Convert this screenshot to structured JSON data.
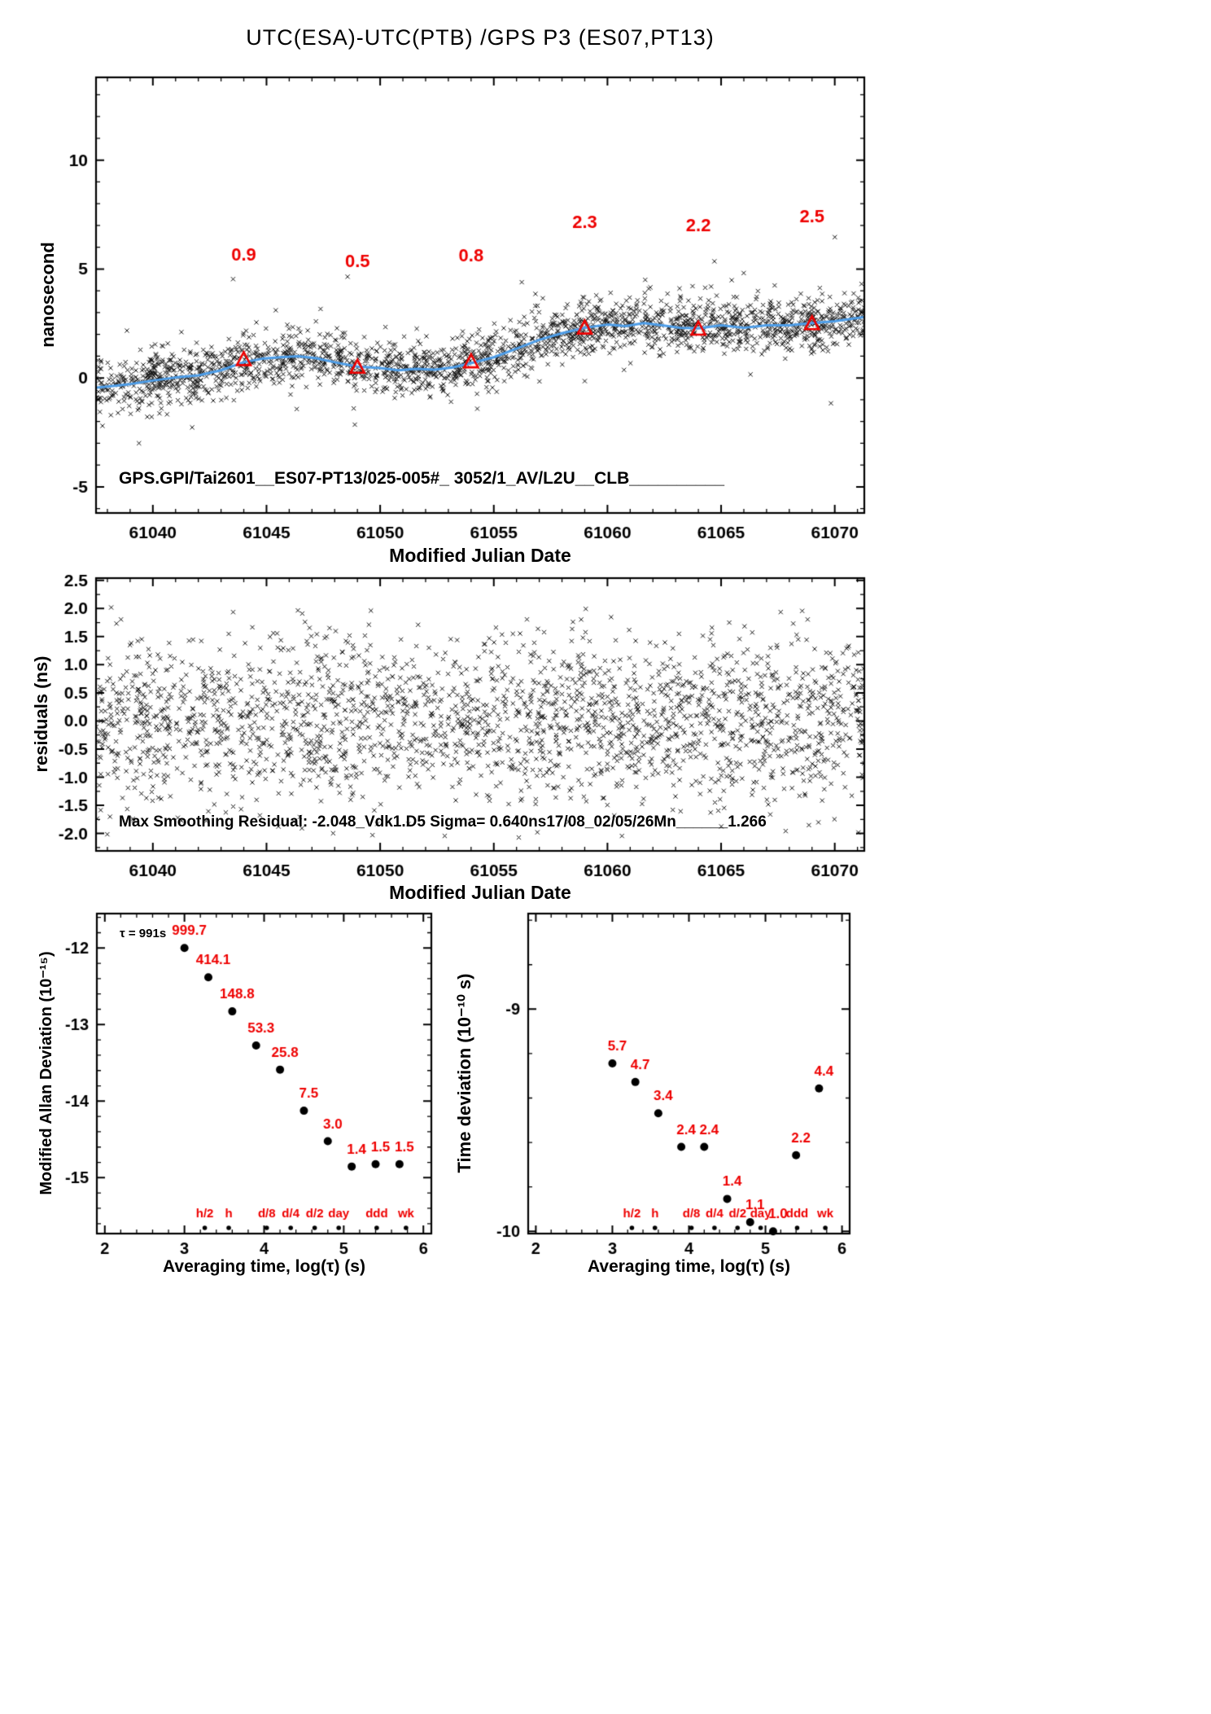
{
  "title": "UTC(ESA)-UTC(PTB)  /GPS  P3  (ES07,PT13)",
  "colors": {
    "red": "#ee0000",
    "blue": "#4d9de8",
    "black": "#000000",
    "marker": "#161616"
  },
  "chart_data": [
    {
      "type": "scatter",
      "name": "time-difference",
      "xlabel": "Modified Julian Date",
      "ylabel": "nanosecond",
      "xlim": [
        61037.5,
        61071.3
      ],
      "ylim": [
        -6.2,
        13.8
      ],
      "xticks": [
        {
          "v": 61040,
          "label": "61040"
        },
        {
          "v": 61045,
          "label": "61045"
        },
        {
          "v": 61050,
          "label": "61050"
        },
        {
          "v": 61055,
          "label": "61055"
        },
        {
          "v": 61060,
          "label": "61060"
        },
        {
          "v": 61065,
          "label": "61065"
        },
        {
          "v": 61070,
          "label": "61070"
        }
      ],
      "yticks": [
        {
          "v": -5,
          "label": "-5"
        },
        {
          "v": 0,
          "label": "0"
        },
        {
          "v": 5,
          "label": "5"
        },
        {
          "v": 10,
          "label": "10"
        }
      ],
      "minor_x": 1,
      "minor_y": 1,
      "annotation": "GPS.GPI/Tai2601__ES07-PT13/025-005#_  3052/1_AV/L2U__CLB__________",
      "smoothed_line": [
        [
          61037.5,
          -0.45
        ],
        [
          61038,
          -0.4
        ],
        [
          61039,
          -0.28
        ],
        [
          61040,
          -0.12
        ],
        [
          61041,
          0.02
        ],
        [
          61042,
          0.12
        ],
        [
          61043,
          0.35
        ],
        [
          61044,
          0.72
        ],
        [
          61044.8,
          0.88
        ],
        [
          61045.6,
          0.95
        ],
        [
          61046.4,
          1.0
        ],
        [
          61047.2,
          0.9
        ],
        [
          61048,
          0.72
        ],
        [
          61049,
          0.52
        ],
        [
          61050,
          0.45
        ],
        [
          61050.8,
          0.35
        ],
        [
          61051.6,
          0.42
        ],
        [
          61052.4,
          0.38
        ],
        [
          61053.2,
          0.48
        ],
        [
          61054,
          0.68
        ],
        [
          61055,
          0.95
        ],
        [
          61056,
          1.35
        ],
        [
          61057,
          1.75
        ],
        [
          61058,
          2.05
        ],
        [
          61059,
          2.3
        ],
        [
          61060,
          2.45
        ],
        [
          61060.8,
          2.38
        ],
        [
          61061.6,
          2.52
        ],
        [
          61062.4,
          2.42
        ],
        [
          61063.2,
          2.3
        ],
        [
          61064,
          2.28
        ],
        [
          61065,
          2.42
        ],
        [
          61066,
          2.3
        ],
        [
          61067,
          2.42
        ],
        [
          61068,
          2.42
        ],
        [
          61069,
          2.52
        ],
        [
          61070,
          2.6
        ],
        [
          61071.3,
          2.8
        ]
      ],
      "five_day_averages": [
        {
          "x": 61044,
          "y": 0.85,
          "label": "0.9",
          "label_y": 5.4
        },
        {
          "x": 61049,
          "y": 0.5,
          "label": "0.5",
          "label_y": 5.1
        },
        {
          "x": 61054,
          "y": 0.75,
          "label": "0.8",
          "label_y": 5.35
        },
        {
          "x": 61059,
          "y": 2.3,
          "label": "2.3",
          "label_y": 6.9
        },
        {
          "x": 61064,
          "y": 2.25,
          "label": "2.2",
          "label_y": 6.75
        },
        {
          "x": 61069,
          "y": 2.5,
          "label": "2.5",
          "label_y": 7.15
        }
      ],
      "scatter": {
        "n": 2300,
        "sigma": 0.6,
        "halo_every": 13,
        "halo_mult": 2.3,
        "seed": 1234,
        "follow_line": true
      }
    },
    {
      "type": "scatter",
      "name": "residuals",
      "xlabel": "Modified Julian Date",
      "ylabel": "residuals (ns)",
      "xlim": [
        61037.5,
        61071.3
      ],
      "ylim": [
        -2.31,
        2.54
      ],
      "xticks": [
        {
          "v": 61040,
          "label": "61040"
        },
        {
          "v": 61045,
          "label": "61045"
        },
        {
          "v": 61050,
          "label": "61050"
        },
        {
          "v": 61055,
          "label": "61055"
        },
        {
          "v": 61060,
          "label": "61060"
        },
        {
          "v": 61065,
          "label": "61065"
        },
        {
          "v": 61070,
          "label": "61070"
        }
      ],
      "yticks": [
        {
          "v": 2.5,
          "label": "2.5"
        },
        {
          "v": 2.0,
          "label": "2.0"
        },
        {
          "v": 1.5,
          "label": "1.5"
        },
        {
          "v": 1.0,
          "label": "1.0"
        },
        {
          "v": 0.5,
          "label": "0.5"
        },
        {
          "v": 0.0,
          "label": "0.0"
        },
        {
          "v": -0.5,
          "label": "-0.5"
        },
        {
          "v": -1.0,
          "label": "-1.0"
        },
        {
          "v": -1.5,
          "label": "-1.5"
        },
        {
          "v": -2.0,
          "label": "-2.0"
        }
      ],
      "minor_x": 1,
      "minor_y": 0.25,
      "annotation": "Max Smoothing Residual: -2.048_Vdk1.D5  Sigma= 0.640ns17/08_02/05/26Mn______1.266",
      "scatter": {
        "n": 2300,
        "sigma": 0.72,
        "clip": [
          -2.08,
          2.12
        ],
        "halo_every": 29,
        "halo_mult": 1.6,
        "seed": 8765,
        "follow_line": false
      }
    },
    {
      "type": "scatter",
      "name": "modified-allan-deviation",
      "xlabel": "Averaging time, log(τ) (s)",
      "ylabel": "Modified Allan Deviation (10⁻¹⁵)",
      "tau_note": "τ = 991s",
      "xlim": [
        1.9,
        6.1
      ],
      "ylim": [
        -15.73,
        -11.55
      ],
      "xticks": [
        {
          "v": 2,
          "label": "2"
        },
        {
          "v": 3,
          "label": "3"
        },
        {
          "v": 4,
          "label": "4"
        },
        {
          "v": 5,
          "label": "5"
        },
        {
          "v": 6,
          "label": "6"
        }
      ],
      "yticks": [
        {
          "v": -12,
          "label": "-12"
        },
        {
          "v": -13,
          "label": "-13"
        },
        {
          "v": -14,
          "label": "-14"
        },
        {
          "v": -15,
          "label": "-15"
        }
      ],
      "minor_x": 0.2,
      "minor_y": 0.2,
      "unit_exponent": -15,
      "points": [
        {
          "logtau": 3.0,
          "value": 999.7,
          "label": "999.7"
        },
        {
          "logtau": 3.3,
          "value": 414.1,
          "label": "414.1"
        },
        {
          "logtau": 3.6,
          "value": 148.8,
          "label": "148.8"
        },
        {
          "logtau": 3.9,
          "value": 53.3,
          "label": "53.3"
        },
        {
          "logtau": 4.2,
          "value": 25.8,
          "label": "25.8"
        },
        {
          "logtau": 4.5,
          "value": 7.5,
          "label": "7.5"
        },
        {
          "logtau": 4.8,
          "value": 3.0,
          "label": "3.0"
        },
        {
          "logtau": 5.1,
          "value": 1.4,
          "label": "1.4"
        },
        {
          "logtau": 5.4,
          "value": 1.5,
          "label": "1.5"
        },
        {
          "logtau": 5.7,
          "value": 1.5,
          "label": "1.5"
        }
      ],
      "time_marks": [
        {
          "logtau": 3.255,
          "label": "h/2"
        },
        {
          "logtau": 3.556,
          "label": "h"
        },
        {
          "logtau": 4.033,
          "label": "d/8"
        },
        {
          "logtau": 4.334,
          "label": "d/4"
        },
        {
          "logtau": 4.635,
          "label": "d/2"
        },
        {
          "logtau": 4.937,
          "label": "day"
        },
        {
          "logtau": 5.414,
          "label": "ddd"
        },
        {
          "logtau": 5.782,
          "label": "wk"
        }
      ]
    },
    {
      "type": "scatter",
      "name": "time-deviation",
      "xlabel": "Averaging time, log(τ) (s)",
      "ylabel": "Time deviation (10⁻¹⁰ s)",
      "xlim": [
        1.9,
        6.1
      ],
      "ylim": [
        -10.01,
        -8.57
      ],
      "xticks": [
        {
          "v": 2,
          "label": "2"
        },
        {
          "v": 3,
          "label": "3"
        },
        {
          "v": 4,
          "label": "4"
        },
        {
          "v": 5,
          "label": "5"
        },
        {
          "v": 6,
          "label": "6"
        }
      ],
      "yticks": [
        {
          "v": -9,
          "label": "-9"
        },
        {
          "v": -10,
          "label": "-10"
        }
      ],
      "minor_x": 0.2,
      "minor_y": 0.2,
      "unit_exponent": -10,
      "points": [
        {
          "logtau": 3.0,
          "value": 5.7,
          "label": "5.7"
        },
        {
          "logtau": 3.3,
          "value": 4.7,
          "label": "4.7"
        },
        {
          "logtau": 3.6,
          "value": 3.4,
          "label": "3.4"
        },
        {
          "logtau": 3.9,
          "value": 2.4,
          "label": "2.4"
        },
        {
          "logtau": 4.2,
          "value": 2.4,
          "label": "2.4"
        },
        {
          "logtau": 4.5,
          "value": 1.4,
          "label": "1.4"
        },
        {
          "logtau": 4.8,
          "value": 1.1,
          "label": "1.1"
        },
        {
          "logtau": 5.1,
          "value": 1.0,
          "label": "1.0"
        },
        {
          "logtau": 5.4,
          "value": 2.2,
          "label": "2.2"
        },
        {
          "logtau": 5.7,
          "value": 4.4,
          "label": "4.4"
        }
      ],
      "time_marks": [
        {
          "logtau": 3.255,
          "label": "h/2"
        },
        {
          "logtau": 3.556,
          "label": "h"
        },
        {
          "logtau": 4.033,
          "label": "d/8"
        },
        {
          "logtau": 4.334,
          "label": "d/4"
        },
        {
          "logtau": 4.635,
          "label": "d/2"
        },
        {
          "logtau": 4.937,
          "label": "day"
        },
        {
          "logtau": 5.414,
          "label": "ddd"
        },
        {
          "logtau": 5.782,
          "label": "wk"
        }
      ]
    }
  ]
}
